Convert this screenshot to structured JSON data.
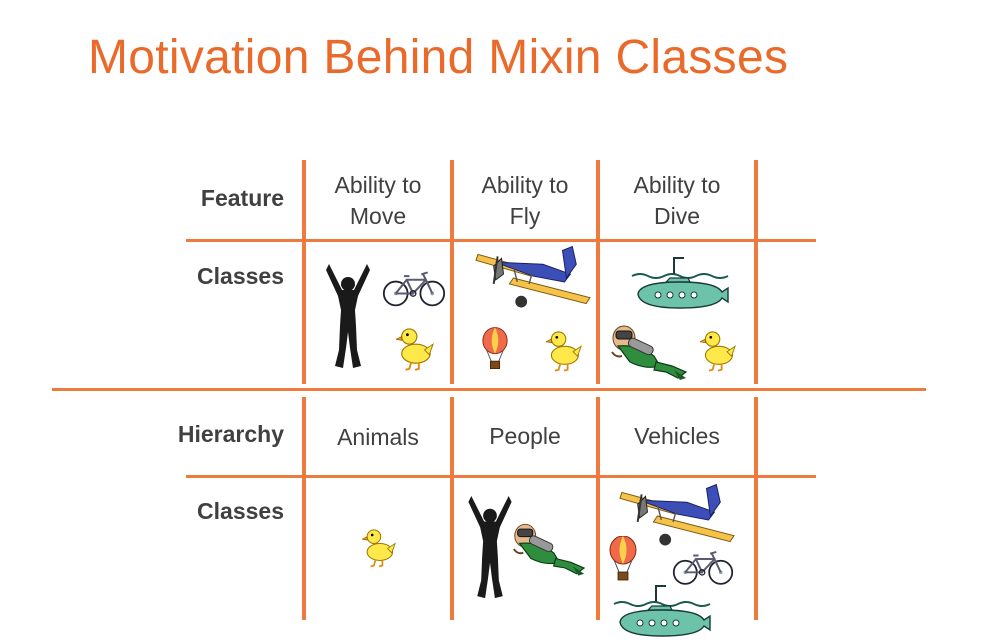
{
  "title": "Motivation Behind Mixin Classes",
  "colors": {
    "title": "#EA6A2C",
    "grid": "#EE7A3E",
    "text": "#404040"
  },
  "feature_table": {
    "row_labels": {
      "feature": "Feature",
      "classes": "Classes"
    },
    "columns": [
      {
        "line1": "Ability to",
        "line2": "Move",
        "icons": [
          "person-silhouette-icon",
          "bicycle-icon",
          "duck-icon"
        ]
      },
      {
        "line1": "Ability to",
        "line2": "Fly",
        "icons": [
          "biplane-icon",
          "hot-air-balloon-icon",
          "duck-icon"
        ]
      },
      {
        "line1": "Ability to",
        "line2": "Dive",
        "icons": [
          "submarine-icon",
          "scuba-diver-icon",
          "duck-icon"
        ]
      }
    ]
  },
  "hierarchy_table": {
    "row_labels": {
      "hierarchy": "Hierarchy",
      "classes": "Classes"
    },
    "columns": [
      {
        "label": "Animals",
        "icons": [
          "duck-icon"
        ]
      },
      {
        "label": "People",
        "icons": [
          "person-silhouette-icon",
          "scuba-diver-icon"
        ]
      },
      {
        "label": "Vehicles",
        "icons": [
          "biplane-icon",
          "hot-air-balloon-icon",
          "bicycle-icon",
          "submarine-icon"
        ]
      }
    ]
  }
}
